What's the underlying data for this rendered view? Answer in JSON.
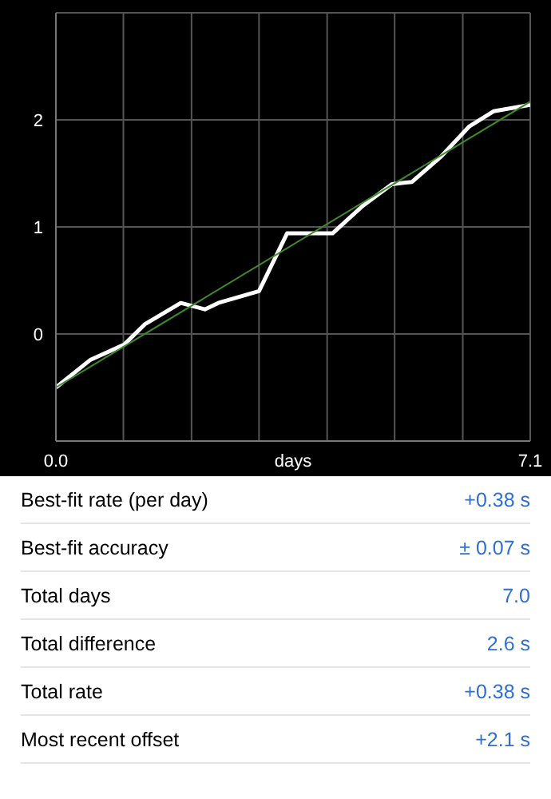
{
  "chart_data": {
    "type": "line",
    "xlabel": "days",
    "xlim": [
      0,
      7.1
    ],
    "xticks": [
      {
        "value": 0,
        "label": "0.0"
      },
      {
        "value": 1.01,
        "label": null
      },
      {
        "value": 2.03,
        "label": null
      },
      {
        "value": 3.04,
        "label": null
      },
      {
        "value": 4.06,
        "label": null
      },
      {
        "value": 5.07,
        "label": null
      },
      {
        "value": 6.09,
        "label": null
      },
      {
        "value": 7.1,
        "label": "7.1"
      }
    ],
    "ylim": [
      -1,
      3
    ],
    "yticks": [
      0,
      1,
      2
    ],
    "grid": true,
    "marker": "none",
    "series": [
      {
        "type": "line",
        "color": "#ffffff",
        "x": [
          0,
          0.52,
          1.02,
          1.33,
          1.87,
          2.23,
          2.43,
          3.04,
          3.46,
          4.14,
          4.58,
          5.03,
          5.33,
          5.77,
          6.19,
          6.55,
          7.1
        ],
        "values": [
          -0.5,
          -0.24,
          -0.1,
          0.09,
          0.29,
          0.23,
          0.29,
          0.4,
          0.94,
          0.94,
          1.19,
          1.4,
          1.42,
          1.66,
          1.94,
          2.08,
          2.14
        ]
      },
      {
        "type": "line",
        "color": "#3f8a2c",
        "x": [
          0,
          7.1
        ],
        "values": [
          -0.5,
          2.17
        ]
      }
    ],
    "annotations": [
      "Best-fit rate (per day)",
      "+0.38 s",
      "Best-fit accuracy",
      "± 0.07 s",
      "Total days",
      "7.0",
      "Total difference",
      "2.6 s",
      "Total rate",
      "+0.38 s",
      "Most recent offset",
      "+2.1 s"
    ]
  }
}
